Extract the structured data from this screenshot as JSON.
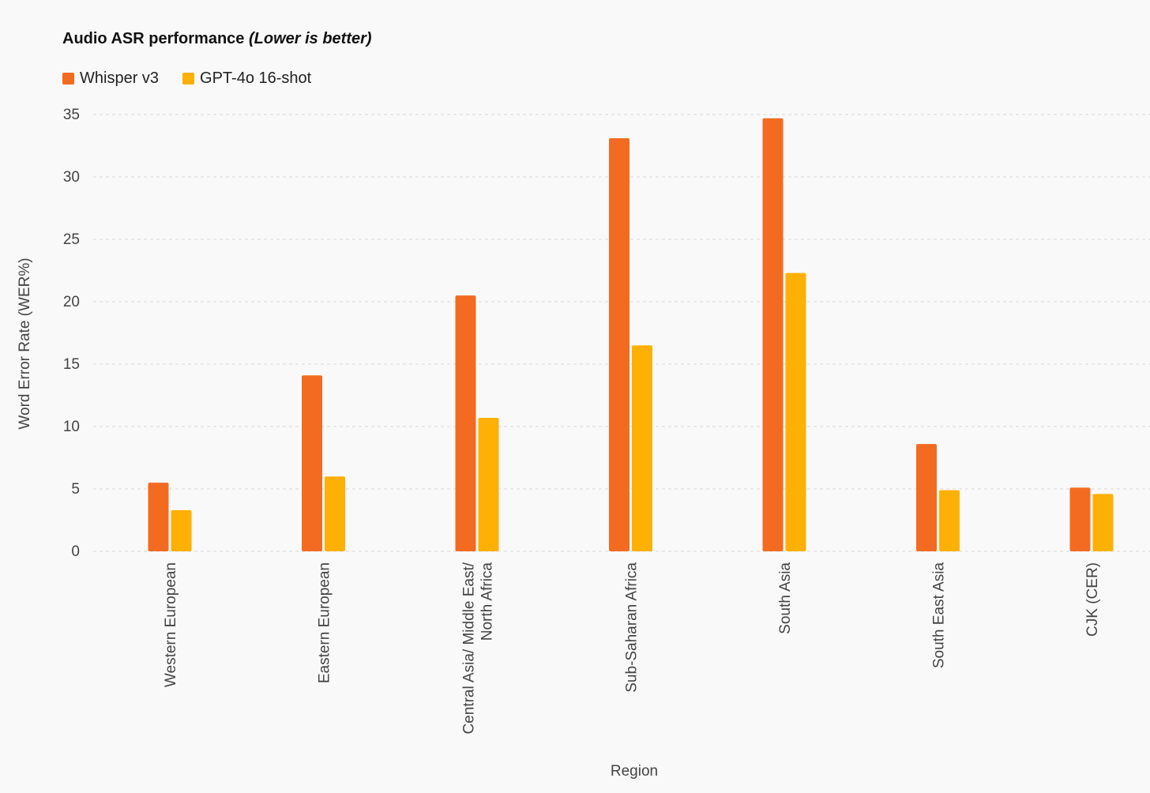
{
  "chart_data": {
    "type": "bar",
    "title": "Audio ASR performance",
    "subtitle": "(Lower is better)",
    "xlabel": "Region",
    "ylabel": "Word Error Rate (WER%)",
    "ylim": [
      0,
      35
    ],
    "yticks": [
      0,
      5,
      10,
      15,
      20,
      25,
      30,
      35
    ],
    "grid": "horizontal dashed",
    "legend_position": "top-left",
    "categories": [
      [
        "Western European"
      ],
      [
        "Eastern European"
      ],
      [
        "Central Asia/ Middle East/",
        "North Africa"
      ],
      [
        "Sub-Saharan Africa"
      ],
      [
        "South Asia"
      ],
      [
        "South East Asia"
      ],
      [
        "CJK (CER)"
      ]
    ],
    "series": [
      {
        "name": "Whisper v3",
        "color": "#f36b21",
        "values": [
          5.5,
          14.1,
          20.5,
          33.1,
          34.7,
          8.6,
          5.1
        ]
      },
      {
        "name": "GPT-4o 16-shot",
        "color": "#ffb005",
        "values": [
          3.3,
          6.0,
          10.7,
          16.5,
          22.3,
          4.9,
          4.6
        ]
      }
    ]
  }
}
